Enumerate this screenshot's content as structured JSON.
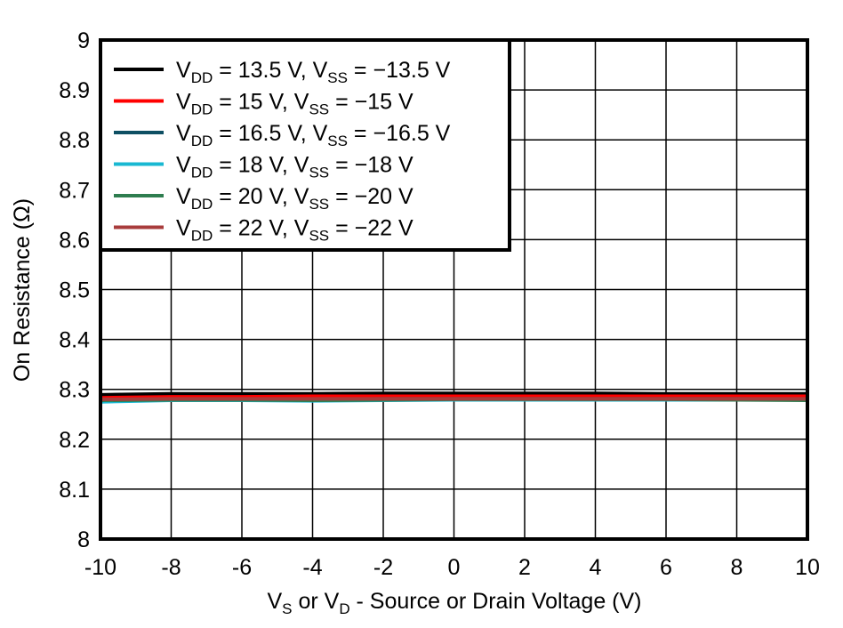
{
  "chart_data": {
    "type": "line",
    "title": "",
    "xlabel": "V_S or V_D - Source or Drain Voltage (V)",
    "xlabel_parts": {
      "v1": "V",
      "s1": "S",
      "mid": " or V",
      "s2": "D",
      "rest": " - Source or Drain Voltage (V)"
    },
    "ylabel": "On Resistance (Ω)",
    "xlim": [
      -10,
      10
    ],
    "ylim": [
      8,
      9
    ],
    "xticks": [
      -10,
      -8,
      -6,
      -4,
      -2,
      0,
      2,
      4,
      6,
      8,
      10
    ],
    "yticks": [
      "8",
      "8.1",
      "8.2",
      "8.3",
      "8.4",
      "8.5",
      "8.6",
      "8.7",
      "8.8",
      "8.9",
      "9"
    ],
    "grid": true,
    "legend_position": "top-left",
    "x": [
      -10,
      -8,
      -6,
      -4,
      -2,
      0,
      2,
      4,
      6,
      8,
      10
    ],
    "series": [
      {
        "name": "VDD = 13.5 V, VSS = −13.5 V",
        "vdd": "13.5",
        "vss": "−13.5",
        "color": "#000000",
        "values": [
          8.289,
          8.291,
          8.291,
          8.291,
          8.292,
          8.292,
          8.292,
          8.292,
          8.291,
          8.291,
          8.291
        ]
      },
      {
        "name": "VDD = 15 V, VSS = −15 V",
        "vdd": "15",
        "vss": "−15",
        "color": "#ff0000",
        "values": [
          8.283,
          8.285,
          8.285,
          8.286,
          8.286,
          8.286,
          8.286,
          8.286,
          8.286,
          8.286,
          8.286
        ]
      },
      {
        "name": "VDD = 16.5 V, VSS = −16.5 V",
        "vdd": "16.5",
        "vss": "−16.5",
        "color": "#0e4f63",
        "values": [
          8.279,
          8.28,
          8.28,
          8.28,
          8.281,
          8.281,
          8.281,
          8.281,
          8.281,
          8.281,
          8.28
        ]
      },
      {
        "name": "VDD = 18 V, VSS = −18 V",
        "vdd": "18",
        "vss": "−18",
        "color": "#19b8d2",
        "values": [
          8.275,
          8.278,
          8.278,
          8.277,
          8.278,
          8.279,
          8.279,
          8.279,
          8.279,
          8.279,
          8.279
        ]
      },
      {
        "name": "VDD = 20 V, VSS = −20 V",
        "vdd": "20",
        "vss": "−20",
        "color": "#2e7d4f",
        "values": [
          8.278,
          8.279,
          8.279,
          8.278,
          8.279,
          8.28,
          8.28,
          8.28,
          8.28,
          8.279,
          8.278
        ]
      },
      {
        "name": "VDD = 22 V, VSS = −22 V",
        "vdd": "22",
        "vss": "−22",
        "color": "#a83c3c",
        "values": [
          8.28,
          8.281,
          8.281,
          8.281,
          8.281,
          8.281,
          8.281,
          8.281,
          8.281,
          8.281,
          8.281
        ]
      }
    ]
  }
}
